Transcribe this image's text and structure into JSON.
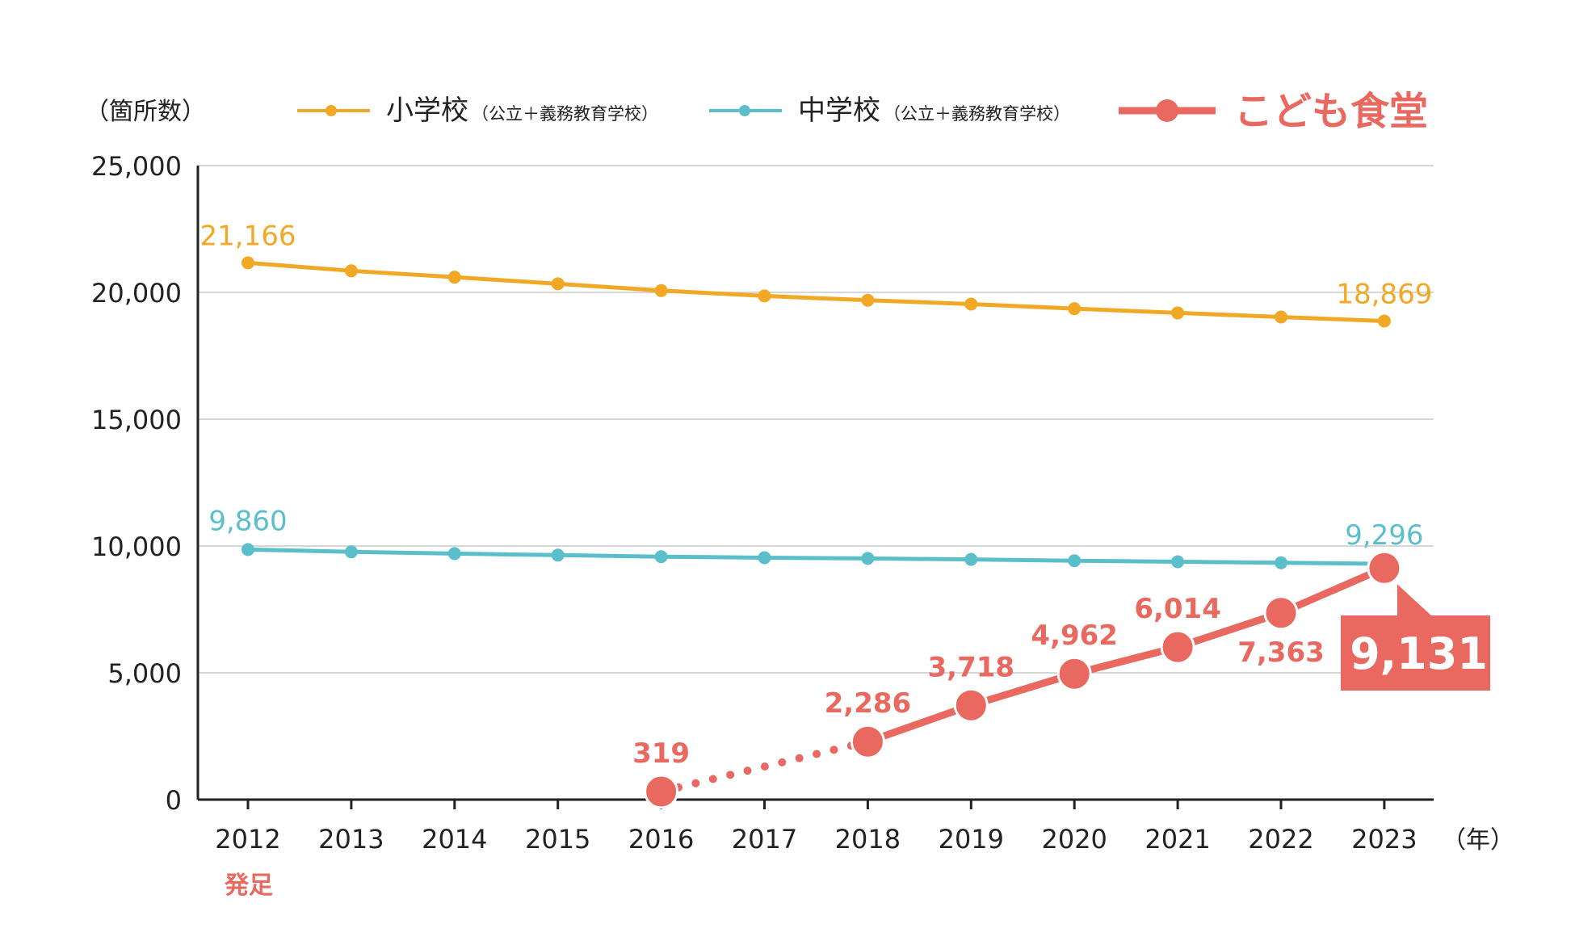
{
  "chart_data": {
    "type": "line",
    "y_unit_label": "（箇所数）",
    "x_unit_label": "（年）",
    "ylim": [
      0,
      25000
    ],
    "y_ticks": [
      0,
      5000,
      10000,
      15000,
      20000,
      25000
    ],
    "y_tick_labels": [
      "0",
      "5,000",
      "10,000",
      "15,000",
      "20,000",
      "25,000"
    ],
    "categories": [
      "2012",
      "2013",
      "2014",
      "2015",
      "2016",
      "2017",
      "2018",
      "2019",
      "2020",
      "2021",
      "2022",
      "2023"
    ],
    "x_annotation": {
      "category": "2012",
      "text": "発足"
    },
    "grid": true,
    "legend_position": "top",
    "series": [
      {
        "id": "elementary",
        "name": "小学校",
        "name_note": "（公立＋義務教育学校）",
        "color": "#F0A825",
        "values": [
          21166,
          20850,
          20600,
          20340,
          20070,
          19860,
          19690,
          19540,
          19360,
          19190,
          19030,
          18869
        ],
        "labels": [
          {
            "index": 0,
            "text": "21,166"
          },
          {
            "index": 11,
            "text": "18,869"
          }
        ]
      },
      {
        "id": "junior_high",
        "name": "中学校",
        "name_note": "（公立＋義務教育学校）",
        "color": "#5BBFCB",
        "values": [
          9860,
          9770,
          9700,
          9640,
          9580,
          9540,
          9510,
          9470,
          9420,
          9380,
          9340,
          9296
        ],
        "labels": [
          {
            "index": 0,
            "text": "9,860"
          },
          {
            "index": 11,
            "text": "9,296"
          }
        ]
      },
      {
        "id": "kodomo_shokudo",
        "name": "こども食堂",
        "color": "#E9685F",
        "values": [
          null,
          null,
          null,
          null,
          319,
          null,
          2286,
          3718,
          4962,
          6014,
          7363,
          9131
        ],
        "dotted_segment": [
          "2016",
          "2018"
        ],
        "labels": [
          {
            "index": 4,
            "text": "319"
          },
          {
            "index": 6,
            "text": "2,286"
          },
          {
            "index": 7,
            "text": "3,718"
          },
          {
            "index": 8,
            "text": "4,962"
          },
          {
            "index": 9,
            "text": "6,014"
          },
          {
            "index": 10,
            "text": "7,363"
          }
        ],
        "callout": {
          "index": 11,
          "text": "9,131"
        }
      }
    ]
  }
}
